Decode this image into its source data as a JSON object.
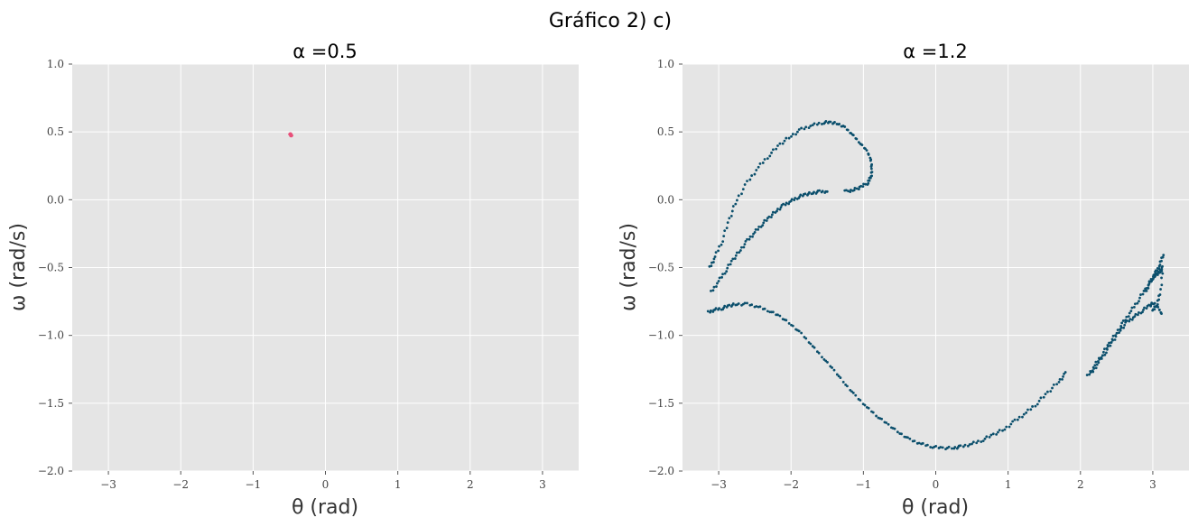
{
  "figure": {
    "suptitle": "Gráfico 2) c)"
  },
  "chart_data": [
    {
      "type": "scatter",
      "title": "α =0.5",
      "xlabel": "θ (rad)",
      "ylabel": "ω (rad/s)",
      "xlim": [
        -3.5,
        3.5
      ],
      "ylim": [
        -2.0,
        1.0
      ],
      "xticks": [
        -3,
        -2,
        -1,
        0,
        1,
        2,
        3
      ],
      "xtick_labels": [
        "−3",
        "−2",
        "−1",
        "0",
        "1",
        "2",
        "3"
      ],
      "yticks": [
        1.0,
        0.5,
        0.0,
        -0.5,
        -1.0,
        -1.5,
        -2.0
      ],
      "ytick_labels": [
        "1.0",
        "0.5",
        "0.0",
        "−0.5",
        "−1.0",
        "−1.5",
        "−2.0"
      ],
      "grid": true,
      "series": [
        {
          "color": "#e8507a",
          "x": [
            -0.49,
            -0.48,
            -0.47,
            -0.49,
            -0.48,
            -0.47,
            -0.48
          ],
          "y": [
            0.475,
            0.48,
            0.482,
            0.478,
            0.476,
            0.479,
            0.481
          ]
        }
      ]
    },
    {
      "type": "scatter",
      "title": "α =1.2",
      "xlabel": "θ (rad)",
      "ylabel": "ω (rad/s)",
      "xlim": [
        -3.5,
        3.5
      ],
      "ylim": [
        -2.0,
        1.0
      ],
      "xticks": [
        -3,
        -2,
        -1,
        0,
        1,
        2,
        3
      ],
      "xtick_labels": [
        "−3",
        "−2",
        "−1",
        "0",
        "1",
        "2",
        "3"
      ],
      "yticks": [
        1.0,
        0.5,
        0.0,
        -0.5,
        -1.0,
        -1.5,
        -2.0
      ],
      "ytick_labels": [
        "1.0",
        "0.5",
        "0.0",
        "−0.5",
        "−1.0",
        "−1.5",
        "−2.0"
      ],
      "grid": true,
      "series": [
        {
          "color": "#0b4f6c",
          "curves": [
            {
              "x": [
                -3.14,
                -3.05,
                -2.95,
                -2.85,
                -2.75,
                -2.6,
                -2.45,
                -2.3,
                -2.15,
                -2.0,
                -1.85,
                -1.7,
                -1.55,
                -1.4,
                -1.25,
                -1.1,
                -0.95,
                -0.8,
                -0.65,
                -0.5,
                -0.35,
                -0.2,
                -0.05,
                0.1,
                0.25,
                0.35,
                0.5,
                0.65,
                0.8,
                0.95,
                1.1,
                1.25,
                1.4,
                1.55,
                1.7,
                1.8
              ],
              "y": [
                -0.83,
                -0.81,
                -0.8,
                -0.78,
                -0.77,
                -0.77,
                -0.79,
                -0.82,
                -0.86,
                -0.92,
                -0.99,
                -1.08,
                -1.17,
                -1.26,
                -1.36,
                -1.45,
                -1.53,
                -1.6,
                -1.66,
                -1.72,
                -1.77,
                -1.8,
                -1.82,
                -1.83,
                -1.83,
                -1.82,
                -1.8,
                -1.77,
                -1.73,
                -1.69,
                -1.63,
                -1.57,
                -1.5,
                -1.42,
                -1.34,
                -1.28
              ]
            },
            {
              "x": [
                -3.12,
                -3.05,
                -2.95,
                -2.85,
                -2.75,
                -2.6,
                -2.45,
                -2.3,
                -2.15,
                -2.0,
                -1.85,
                -1.7,
                -1.55,
                -1.45,
                -1.35,
                -1.25,
                -1.15,
                -1.05,
                -0.95,
                -0.9,
                -0.88,
                -0.9,
                -0.95,
                -1.05,
                -1.15,
                -1.25
              ],
              "y": [
                -0.5,
                -0.42,
                -0.3,
                -0.14,
                0.0,
                0.13,
                0.24,
                0.33,
                0.41,
                0.47,
                0.52,
                0.55,
                0.57,
                0.57,
                0.56,
                0.53,
                0.48,
                0.42,
                0.36,
                0.3,
                0.22,
                0.16,
                0.12,
                0.09,
                0.07,
                0.06
              ]
            },
            {
              "x": [
                -3.1,
                -3.0,
                -2.9,
                -2.8,
                -2.7,
                -2.6,
                -2.5,
                -2.4,
                -2.3,
                -2.2,
                -2.1,
                -2.0,
                -1.9,
                -1.8,
                -1.7,
                -1.6,
                -1.5
              ],
              "y": [
                -0.68,
                -0.6,
                -0.52,
                -0.44,
                -0.37,
                -0.3,
                -0.24,
                -0.18,
                -0.13,
                -0.08,
                -0.04,
                -0.01,
                0.02,
                0.04,
                0.05,
                0.06,
                0.06
              ]
            },
            {
              "x": [
                2.1,
                2.2,
                2.3,
                2.4,
                2.5,
                2.6,
                2.7,
                2.8,
                2.9,
                3.0,
                3.05,
                3.1,
                3.14
              ],
              "y": [
                -1.3,
                -1.22,
                -1.14,
                -1.06,
                -0.98,
                -0.9,
                -0.82,
                -0.74,
                -0.66,
                -0.58,
                -0.53,
                -0.48,
                -0.4
              ]
            },
            {
              "x": [
                2.15,
                2.25,
                2.35,
                2.45,
                2.55,
                2.65,
                2.75,
                2.85,
                2.95,
                3.02,
                3.08,
                3.12
              ],
              "y": [
                -1.28,
                -1.2,
                -1.12,
                -1.04,
                -0.96,
                -0.9,
                -0.86,
                -0.82,
                -0.78,
                -0.76,
                -0.8,
                -0.84
              ]
            },
            {
              "x": [
                2.9,
                2.95,
                3.0,
                3.05,
                3.1,
                3.14,
                3.1,
                3.05,
                3.0
              ],
              "y": [
                -0.68,
                -0.62,
                -0.57,
                -0.55,
                -0.53,
                -0.5,
                -0.7,
                -0.78,
                -0.82
              ]
            }
          ]
        }
      ]
    }
  ]
}
